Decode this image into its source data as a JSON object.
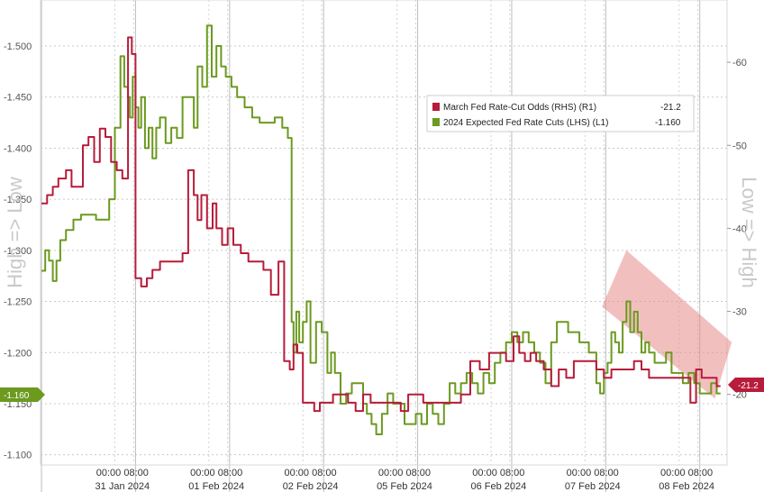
{
  "chart_data": {
    "type": "line",
    "axis_titles": {
      "left": "High => Low",
      "right": "Low => High"
    },
    "left_axis": {
      "range": [
        -1.09,
        -1.545
      ],
      "ticks": [
        "-1.500",
        "-1.450",
        "-1.400",
        "-1.350",
        "-1.300",
        "-1.250",
        "-1.200",
        "-1.150",
        "-1.100"
      ]
    },
    "right_axis": {
      "range": [
        11.5,
        67.5
      ],
      "ticks": [
        "-60",
        "-50",
        "-40",
        "-30",
        "-20"
      ]
    },
    "x_labels": [
      {
        "x": 0.5,
        "time": "00:00 08:00",
        "date": "31 Jan 2024"
      },
      {
        "x": 1.5,
        "time": "00:00 08:00",
        "date": "01 Feb 2024"
      },
      {
        "x": 2.5,
        "time": "00:00 08:00",
        "date": "02 Feb 2024"
      },
      {
        "x": 3.5,
        "time": "00:00 08:00",
        "date": "05 Feb 2024"
      },
      {
        "x": 4.5,
        "time": "00:00 08:00",
        "date": "06 Feb 2024"
      },
      {
        "x": 5.5,
        "time": "00:00 08:00",
        "date": "07 Feb 2024"
      },
      {
        "x": 6.5,
        "time": "00:00 08:00",
        "date": "08 Feb 2024"
      }
    ],
    "x_range": [
      -0.37,
      6.93
    ],
    "legend": [
      {
        "label": "March Fed Rate-Cut Odds (RHS) (R1)",
        "value": "-21.2",
        "color": "#b71c3a"
      },
      {
        "label": "2024 Expected Fed Rate Cuts (LHS) (L1)",
        "value": "-1.160",
        "color": "#6b9a1f"
      }
    ],
    "last_value_tags": {
      "left": "-1.160",
      "right": "-21.2"
    },
    "series": [
      {
        "name": "2024 Expected Fed Rate Cuts (LHS) (L1)",
        "axis": "left",
        "color": "#6b9a1f",
        "x": [
          -0.36,
          -0.32,
          -0.28,
          -0.24,
          -0.2,
          -0.16,
          -0.1,
          -0.02,
          0.06,
          0.14,
          0.22,
          0.3,
          0.36,
          0.42,
          0.48,
          0.52,
          0.56,
          0.58,
          0.61,
          0.64,
          0.67,
          0.7,
          0.74,
          0.78,
          0.82,
          0.86,
          0.9,
          0.96,
          1.02,
          1.08,
          1.14,
          1.2,
          1.26,
          1.3,
          1.35,
          1.4,
          1.45,
          1.5,
          1.55,
          1.6,
          1.66,
          1.72,
          1.8,
          1.88,
          1.96,
          2.04,
          2.12,
          2.2,
          2.26,
          2.3,
          2.32,
          2.35,
          2.38,
          2.42,
          2.46,
          2.5,
          2.56,
          2.62,
          2.68,
          2.72,
          2.76,
          2.82,
          2.88,
          2.94,
          3.0,
          3.06,
          3.1,
          3.15,
          3.2,
          3.26,
          3.32,
          3.38,
          3.44,
          3.5,
          3.56,
          3.62,
          3.68,
          3.74,
          3.8,
          3.86,
          3.92,
          3.98,
          4.04,
          4.1,
          4.16,
          4.22,
          4.28,
          4.34,
          4.4,
          4.46,
          4.52,
          4.58,
          4.64,
          4.7,
          4.76,
          4.82,
          4.88,
          4.94,
          5.0,
          5.06,
          5.12,
          5.18,
          5.24,
          5.3,
          5.36,
          5.42,
          5.46,
          5.5,
          5.54,
          5.58,
          5.62,
          5.66,
          5.7,
          5.74,
          5.78,
          5.82,
          5.86,
          5.9,
          5.94,
          5.98,
          6.02,
          6.06,
          6.1,
          6.16,
          6.22,
          6.28,
          6.34,
          6.4,
          6.46,
          6.52,
          6.58,
          6.64,
          6.7,
          6.76,
          6.82,
          6.86
        ],
        "y": [
          -1.28,
          -1.3,
          -1.29,
          -1.27,
          -1.29,
          -1.31,
          -1.32,
          -1.33,
          -1.335,
          -1.335,
          -1.33,
          -1.33,
          -1.35,
          -1.42,
          -1.49,
          -1.46,
          -1.45,
          -1.43,
          -1.47,
          -1.44,
          -1.42,
          -1.45,
          -1.4,
          -1.42,
          -1.39,
          -1.42,
          -1.43,
          -1.405,
          -1.42,
          -1.41,
          -1.45,
          -1.45,
          -1.42,
          -1.48,
          -1.46,
          -1.52,
          -1.47,
          -1.5,
          -1.48,
          -1.47,
          -1.46,
          -1.45,
          -1.44,
          -1.43,
          -1.425,
          -1.425,
          -1.43,
          -1.42,
          -1.41,
          -1.23,
          -1.2,
          -1.24,
          -1.21,
          -1.23,
          -1.25,
          -1.19,
          -1.23,
          -1.22,
          -1.18,
          -1.2,
          -1.18,
          -1.15,
          -1.16,
          -1.17,
          -1.17,
          -1.15,
          -1.14,
          -1.13,
          -1.12,
          -1.14,
          -1.16,
          -1.15,
          -1.15,
          -1.13,
          -1.13,
          -1.14,
          -1.13,
          -1.15,
          -1.14,
          -1.13,
          -1.15,
          -1.17,
          -1.16,
          -1.17,
          -1.18,
          -1.17,
          -1.16,
          -1.18,
          -1.17,
          -1.19,
          -1.2,
          -1.21,
          -1.22,
          -1.21,
          -1.22,
          -1.21,
          -1.2,
          -1.19,
          -1.17,
          -1.21,
          -1.23,
          -1.23,
          -1.22,
          -1.22,
          -1.21,
          -1.21,
          -1.2,
          -1.2,
          -1.17,
          -1.16,
          -1.18,
          -1.19,
          -1.22,
          -1.21,
          -1.2,
          -1.23,
          -1.25,
          -1.22,
          -1.24,
          -1.22,
          -1.2,
          -1.21,
          -1.2,
          -1.19,
          -1.19,
          -1.2,
          -1.18,
          -1.18,
          -1.17,
          -1.18,
          -1.17,
          -1.16,
          -1.16,
          -1.17,
          -1.16,
          -1.16
        ]
      },
      {
        "name": "March Fed Rate-Cut Odds (RHS) (R1)",
        "axis": "right",
        "color": "#b71c3a",
        "x": [
          -0.36,
          -0.3,
          -0.24,
          -0.18,
          -0.1,
          -0.04,
          0.02,
          0.08,
          0.14,
          0.2,
          0.26,
          0.32,
          0.38,
          0.44,
          0.5,
          0.56,
          0.6,
          0.64,
          0.7,
          0.76,
          0.82,
          0.9,
          0.98,
          1.06,
          1.14,
          1.2,
          1.26,
          1.3,
          1.34,
          1.4,
          1.46,
          1.5,
          1.56,
          1.62,
          1.68,
          1.76,
          1.84,
          1.92,
          2.0,
          2.08,
          2.16,
          2.22,
          2.28,
          2.32,
          2.36,
          2.42,
          2.48,
          2.54,
          2.6,
          2.66,
          2.74,
          2.82,
          2.9,
          2.98,
          3.06,
          3.14,
          3.22,
          3.3,
          3.38,
          3.46,
          3.54,
          3.62,
          3.7,
          3.8,
          3.9,
          4.0,
          4.1,
          4.2,
          4.3,
          4.4,
          4.5,
          4.58,
          4.66,
          4.72,
          4.78,
          4.84,
          4.9,
          4.98,
          5.06,
          5.14,
          5.22,
          5.3,
          5.38,
          5.46,
          5.54,
          5.62,
          5.7,
          5.78,
          5.86,
          5.94,
          6.02,
          6.1,
          6.18,
          6.26,
          6.34,
          6.42,
          6.48,
          6.54,
          6.6,
          6.66,
          6.74,
          6.82,
          6.86
        ],
        "y": [
          43,
          44,
          45,
          46,
          47,
          45,
          45,
          50,
          51,
          48,
          52,
          51,
          48,
          47,
          46,
          63,
          61,
          34,
          33,
          34,
          35,
          36,
          36,
          36,
          37,
          47,
          44,
          41,
          44,
          40,
          43,
          40,
          38,
          40,
          38,
          37,
          36,
          36,
          35,
          32,
          36,
          24,
          23,
          26,
          25,
          19,
          19,
          18,
          19,
          19,
          20,
          20,
          19,
          18,
          20,
          19,
          19,
          19,
          19,
          18,
          20,
          20,
          19,
          19,
          19,
          19,
          20,
          24,
          23,
          25,
          25,
          24,
          27,
          25,
          24,
          25,
          24,
          23,
          21,
          23,
          22,
          24,
          24,
          24,
          23,
          22,
          23,
          23,
          23,
          24,
          23,
          22,
          22,
          22,
          22,
          22,
          22,
          19,
          23,
          22,
          22,
          21,
          21
        ]
      }
    ],
    "annotations": [
      {
        "type": "trend-channel",
        "color": "#e88a8a",
        "points": [
          [
            5.6,
            -1.245
          ],
          [
            5.86,
            -1.3
          ],
          [
            6.98,
            -1.21
          ],
          [
            6.8,
            -1.155
          ]
        ]
      }
    ]
  }
}
